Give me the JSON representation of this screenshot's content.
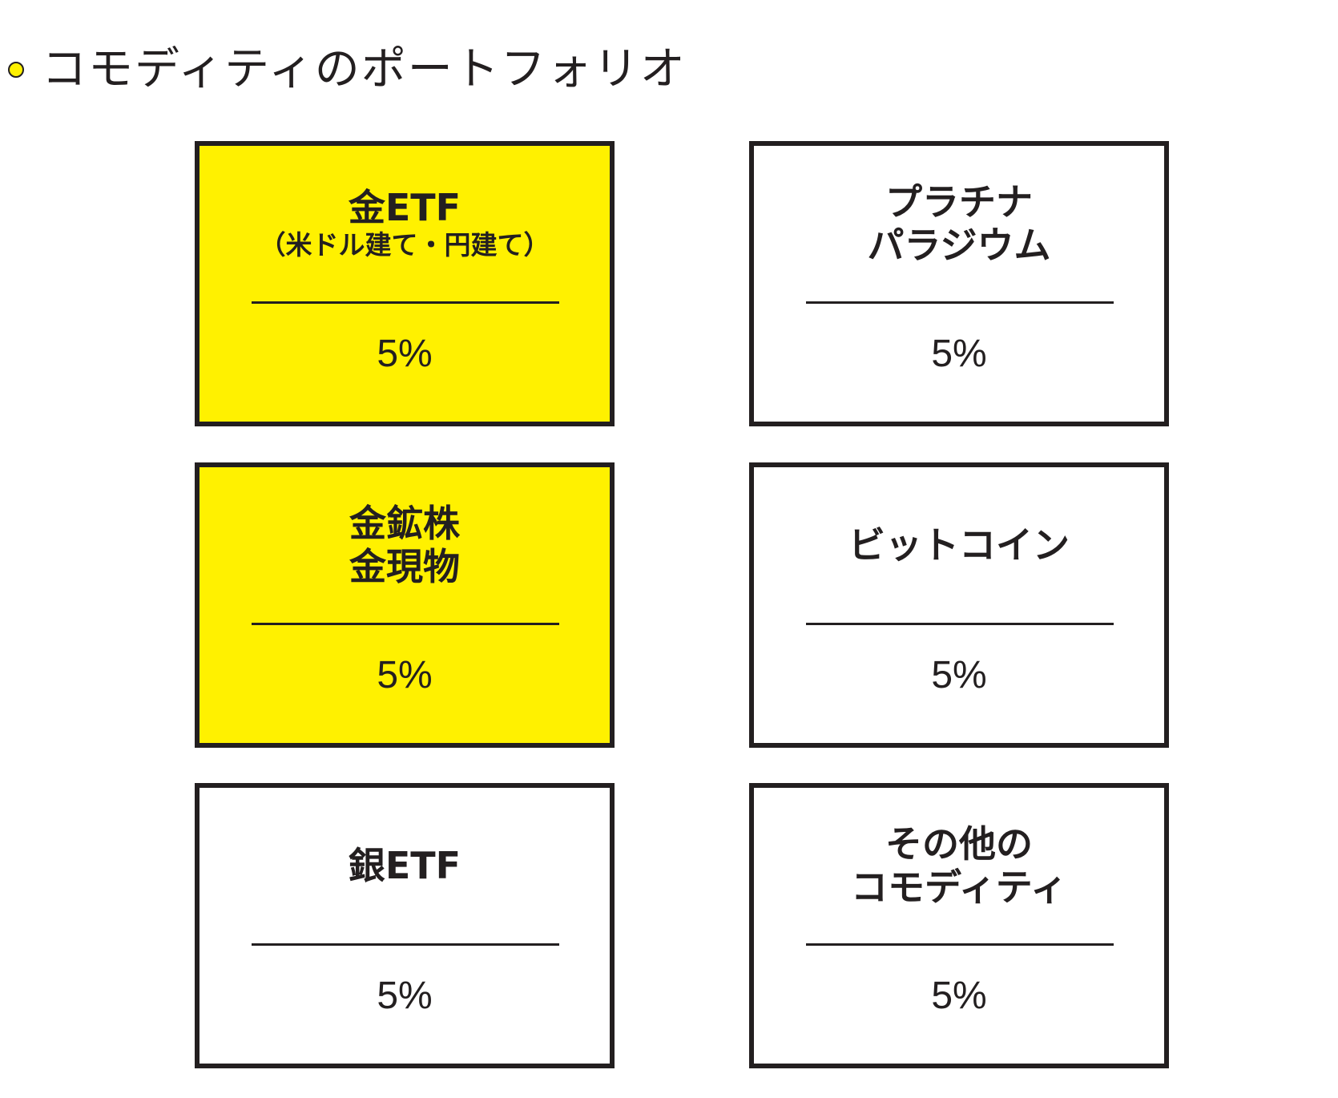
{
  "header": {
    "title": "コモディティのポートフォリオ",
    "bullet_color": "#fff100"
  },
  "colors": {
    "highlight": "#fff100",
    "border": "#231f20",
    "plain": "#ffffff"
  },
  "cards": [
    {
      "lines": [
        "金ETF"
      ],
      "sub": "（米ドル建て・円建て）",
      "percent": "5%",
      "highlighted": true
    },
    {
      "lines": [
        "プラチナ",
        "パラジウム"
      ],
      "percent": "5%",
      "highlighted": false
    },
    {
      "lines": [
        "金鉱株",
        "金現物"
      ],
      "percent": "5%",
      "highlighted": true
    },
    {
      "lines": [
        "ビットコイン"
      ],
      "percent": "5%",
      "highlighted": false
    },
    {
      "lines": [
        "銀ETF"
      ],
      "percent": "5%",
      "highlighted": false
    },
    {
      "lines": [
        "その他の",
        "コモディティ"
      ],
      "percent": "5%",
      "highlighted": false
    }
  ]
}
